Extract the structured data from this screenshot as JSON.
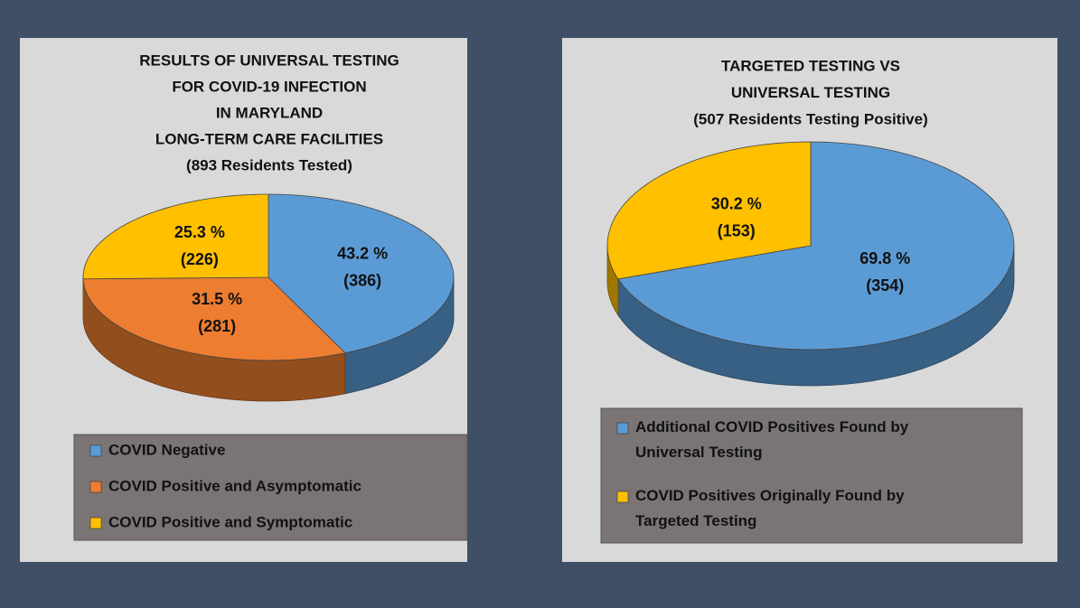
{
  "chart_data": [
    {
      "type": "pie",
      "title": [
        "RESULTS OF UNIVERSAL TESTING",
        "FOR COVID-19 INFECTION",
        "IN MARYLAND",
        "LONG-TERM CARE FACILITIES"
      ],
      "subtitle": "(893 Residents Tested)",
      "categories": [
        "COVID Negative",
        "COVID Positive and Asymptomatic",
        "COVID Positive and Symptomatic"
      ],
      "values": [
        43.2,
        31.5,
        25.3
      ],
      "value_labels": [
        "43.2 %",
        "31.5 %",
        "25.3 %"
      ],
      "counts": [
        386,
        281,
        226
      ],
      "count_labels": [
        "(386)",
        "(281)",
        "(226)"
      ],
      "colors": [
        "#5b9bd5",
        "#ed7d31",
        "#ffc000"
      ],
      "legend": "bottom"
    },
    {
      "type": "pie",
      "title": [
        "TARGETED TESTING VS",
        "UNIVERSAL TESTING"
      ],
      "subtitle": "(507 Residents Testing Positive)",
      "categories": [
        "Additional COVID Positives Found by Universal Testing",
        "COVID Positives Originally Found by Targeted Testing"
      ],
      "values": [
        69.8,
        30.2
      ],
      "value_labels": [
        "69.8 %",
        "30.2 %"
      ],
      "counts": [
        354,
        153
      ],
      "count_labels": [
        "(354)",
        "(153)"
      ],
      "colors": [
        "#5b9bd5",
        "#ffc000"
      ],
      "legend": "bottom"
    }
  ]
}
